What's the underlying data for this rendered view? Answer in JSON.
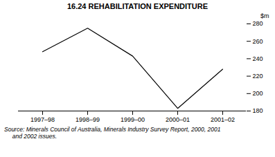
{
  "chart_data": {
    "type": "line",
    "title": "16.24   REHABILITATION EXPENDITURE",
    "categories": [
      "1997–98",
      "1998–99",
      "1999–00",
      "2000–01",
      "2001–02"
    ],
    "values": [
      248,
      275,
      243,
      183,
      228
    ],
    "color": "#000000",
    "ylabel": "$m",
    "ylim": [
      180,
      280
    ],
    "yticks": [
      180,
      200,
      220,
      240,
      260,
      280
    ],
    "grid": false,
    "annotations": [
      "Source: Minerals Council of Australia, Minerals Industry Survey Report, 2000, 2001",
      "     and 2002 issues."
    ]
  }
}
